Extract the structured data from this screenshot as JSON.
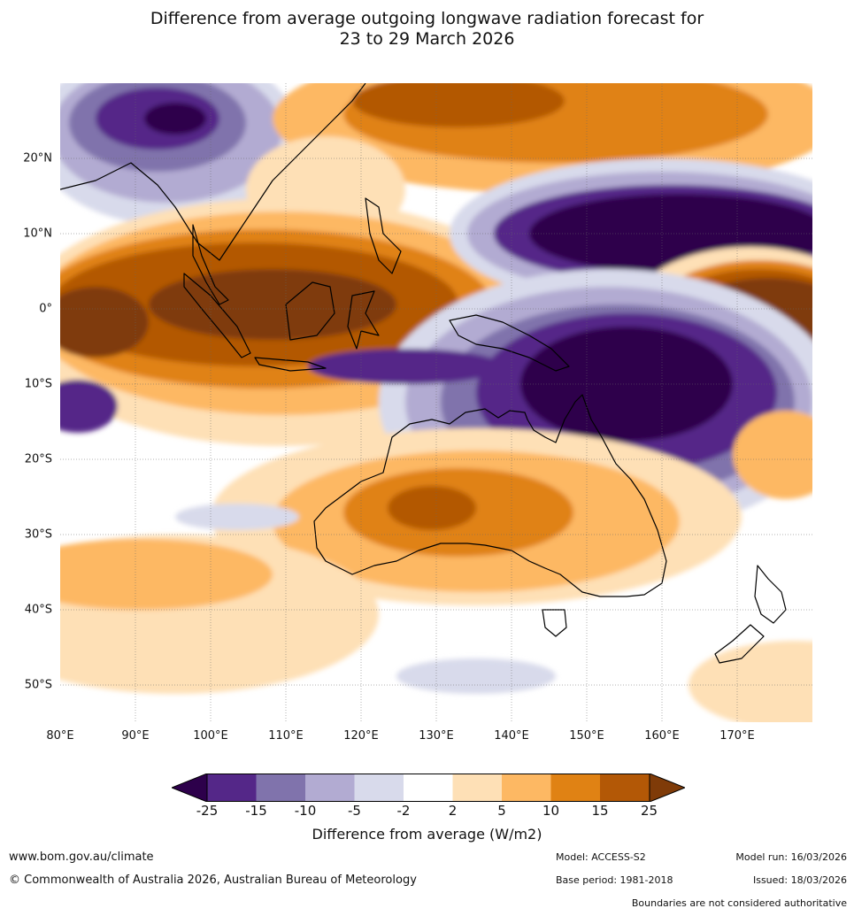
{
  "title_line1": "Difference from average outgoing longwave radiation forecast for",
  "title_line2": "23 to 29 March 2026",
  "map": {
    "region": "Indo-Pacific / Australia",
    "lon_range": [
      80,
      180
    ],
    "lat_range": [
      -55,
      30
    ],
    "lat_labels": [
      "20°N",
      "10°N",
      "0°",
      "10°S",
      "20°S",
      "30°S",
      "40°S",
      "50°S"
    ],
    "lat_values": [
      20,
      10,
      0,
      -10,
      -20,
      -30,
      -40,
      -50
    ],
    "lon_labels": [
      "80°E",
      "90°E",
      "100°E",
      "110°E",
      "120°E",
      "130°E",
      "140°E",
      "150°E",
      "160°E",
      "170°E"
    ],
    "lon_values": [
      80,
      90,
      100,
      110,
      120,
      130,
      140,
      150,
      160,
      170
    ]
  },
  "colorbar": {
    "ticks": [
      "-25",
      "-15",
      "-10",
      "-5",
      "-2",
      "2",
      "5",
      "10",
      "15",
      "25"
    ],
    "colors": {
      "below_min": "#2d004b",
      "c1": "#542788",
      "c2": "#8073ac",
      "c3": "#b2abd2",
      "c4": "#d8daeb",
      "c5": "#ffffff",
      "c6": "#fee0b6",
      "c7": "#fdb863",
      "c8": "#e08214",
      "c9": "#b35806",
      "above_max": "#7f3b08"
    },
    "label": "Difference from average (W/m2)"
  },
  "footer": {
    "website": "www.bom.gov.au/climate",
    "copyright": "© Commonwealth of Australia 2026, Australian Bureau of Meteorology",
    "model": "Model: ACCESS-S2",
    "base_period": "Base period: 1981-2018",
    "model_run": "Model run: 16/03/2026",
    "issued": "Issued: 18/03/2026",
    "boundaries": "Boundaries are not considered authoritative"
  }
}
